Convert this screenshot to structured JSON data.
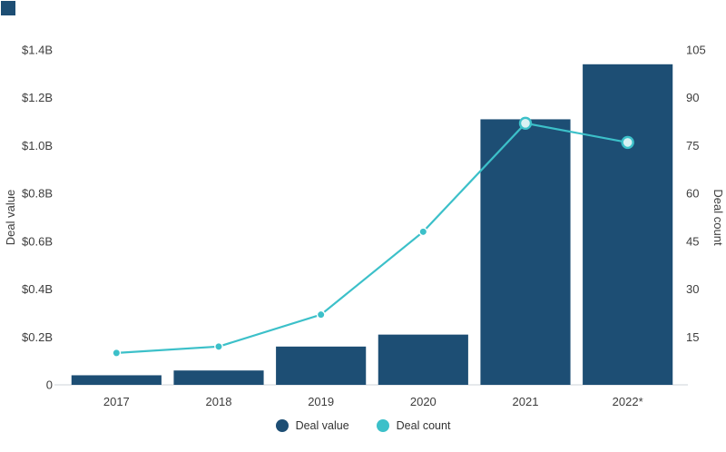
{
  "page": {
    "background": "#ffffff"
  },
  "brand": {
    "corner_square_color": "#1d4e74"
  },
  "chart_data": {
    "type": "bar",
    "subtype": "combo_bar_line",
    "title": "",
    "categories": [
      "2017",
      "2018",
      "2019",
      "2020",
      "2021",
      "2022*"
    ],
    "series": [
      {
        "name": "Deal value",
        "type": "bar",
        "axis": "left",
        "color": "#1d4e74",
        "values": [
          0.04,
          0.06,
          0.16,
          0.21,
          1.11,
          1.34
        ]
      },
      {
        "name": "Deal count",
        "type": "line",
        "axis": "right",
        "color": "#3cc0c9",
        "values": [
          10,
          12,
          22,
          48,
          82,
          76
        ]
      }
    ],
    "left_axis": {
      "label": "Deal value",
      "min": 0,
      "max": 1.4,
      "ticks": [
        {
          "label": "$1.4B",
          "value": 1.4
        },
        {
          "label": "$1.2B",
          "value": 1.2
        },
        {
          "label": "$1.0B",
          "value": 1.0
        },
        {
          "label": "$0.8B",
          "value": 0.8
        },
        {
          "label": "$0.6B",
          "value": 0.6
        },
        {
          "label": "$0.4B",
          "value": 0.4
        },
        {
          "label": "$0.2B",
          "value": 0.2
        },
        {
          "label": "0",
          "value": 0
        }
      ]
    },
    "right_axis": {
      "label": "Deal count",
      "min": 0,
      "max": 105,
      "ticks": [
        {
          "label": "105",
          "value": 105
        },
        {
          "label": "90",
          "value": 90
        },
        {
          "label": "75",
          "value": 75
        },
        {
          "label": "60",
          "value": 60
        },
        {
          "label": "45",
          "value": 45
        },
        {
          "label": "30",
          "value": 30
        },
        {
          "label": "15",
          "value": 15
        }
      ]
    },
    "grid": false,
    "legend_position": "bottom",
    "emphasized_points": [
      "2021",
      "2022*"
    ]
  }
}
